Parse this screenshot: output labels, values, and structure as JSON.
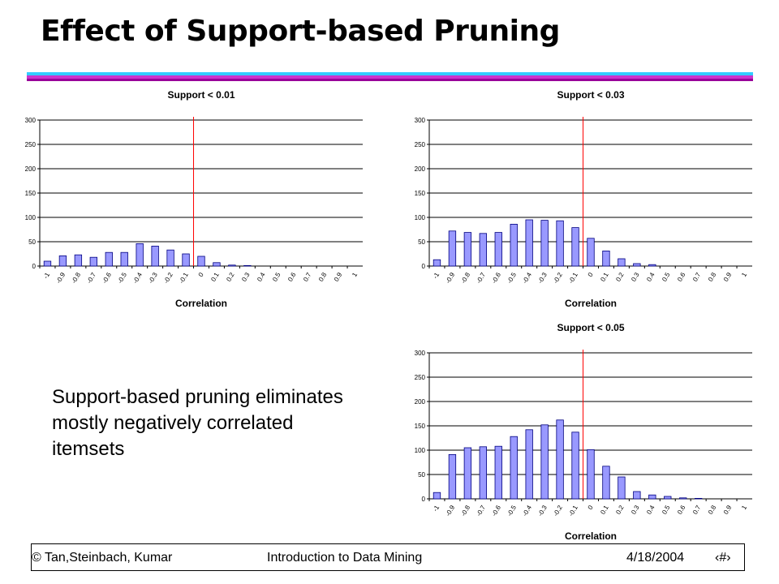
{
  "slide": {
    "title": "Effect of Support-based Pruning",
    "body_text": "Support-based pruning eliminates mostly negatively correlated itemsets"
  },
  "footer": {
    "left": "© Tan,Steinbach, Kumar",
    "center": "Introduction to Data Mining",
    "date": "4/18/2004",
    "page": "‹#›"
  },
  "colors": {
    "bar_fill": "#9999ff",
    "bar_stroke": "#000080",
    "reference_line": "#ff0000",
    "rule_cyan": "#33ccff",
    "rule_magenta": "#cc33cc",
    "rule_purple": "#990099"
  },
  "chart_data": [
    {
      "type": "bar",
      "title": "Support < 0.01",
      "xlabel": "Correlation",
      "ylabel": "",
      "categories": [
        "-1",
        "-0.9",
        "-0.8",
        "-0.7",
        "-0.6",
        "-0.5",
        "-0.4",
        "-0.3",
        "-0.2",
        "-0.1",
        "0",
        "0.1",
        "0.2",
        "0.3",
        "0.4",
        "0.5",
        "0.6",
        "0.7",
        "0.8",
        "0.9",
        "1"
      ],
      "values": [
        10,
        21,
        23,
        18,
        28,
        28,
        46,
        41,
        33,
        25,
        20,
        7,
        2,
        1,
        0,
        0,
        0,
        0,
        0,
        0,
        0
      ],
      "ylim": [
        0,
        300
      ],
      "yticks": [
        0,
        50,
        100,
        150,
        200,
        250,
        300
      ],
      "grid": true,
      "reference_line_x": "0"
    },
    {
      "type": "bar",
      "title": "Support < 0.03",
      "xlabel": "Correlation",
      "ylabel": "",
      "categories": [
        "-1",
        "-0.9",
        "-0.8",
        "-0.7",
        "-0.6",
        "-0.5",
        "-0.4",
        "-0.3",
        "-0.2",
        "-0.1",
        "0",
        "0.1",
        "0.2",
        "0.3",
        "0.4",
        "0.5",
        "0.6",
        "0.7",
        "0.8",
        "0.9",
        "1"
      ],
      "values": [
        13,
        72,
        69,
        67,
        69,
        86,
        95,
        94,
        93,
        79,
        57,
        31,
        15,
        5,
        3,
        0,
        0,
        0,
        0,
        0,
        0
      ],
      "ylim": [
        0,
        300
      ],
      "yticks": [
        0,
        50,
        100,
        150,
        200,
        250,
        300
      ],
      "grid": true,
      "reference_line_x": "0"
    },
    {
      "type": "bar",
      "title": "Support < 0.05",
      "xlabel": "Correlation",
      "ylabel": "",
      "categories": [
        "-1",
        "-0.9",
        "-0.8",
        "-0.7",
        "-0.6",
        "-0.5",
        "-0.4",
        "-0.3",
        "-0.2",
        "-0.1",
        "0",
        "0.1",
        "0.2",
        "0.3",
        "0.4",
        "0.5",
        "0.6",
        "0.7",
        "0.8",
        "0.9",
        "1"
      ],
      "values": [
        13,
        91,
        105,
        107,
        108,
        128,
        142,
        152,
        162,
        137,
        101,
        67,
        45,
        15,
        8,
        5,
        2,
        1,
        0,
        0,
        0
      ],
      "ylim": [
        0,
        300
      ],
      "yticks": [
        0,
        50,
        100,
        150,
        200,
        250,
        300
      ],
      "grid": true,
      "reference_line_x": "0"
    }
  ]
}
